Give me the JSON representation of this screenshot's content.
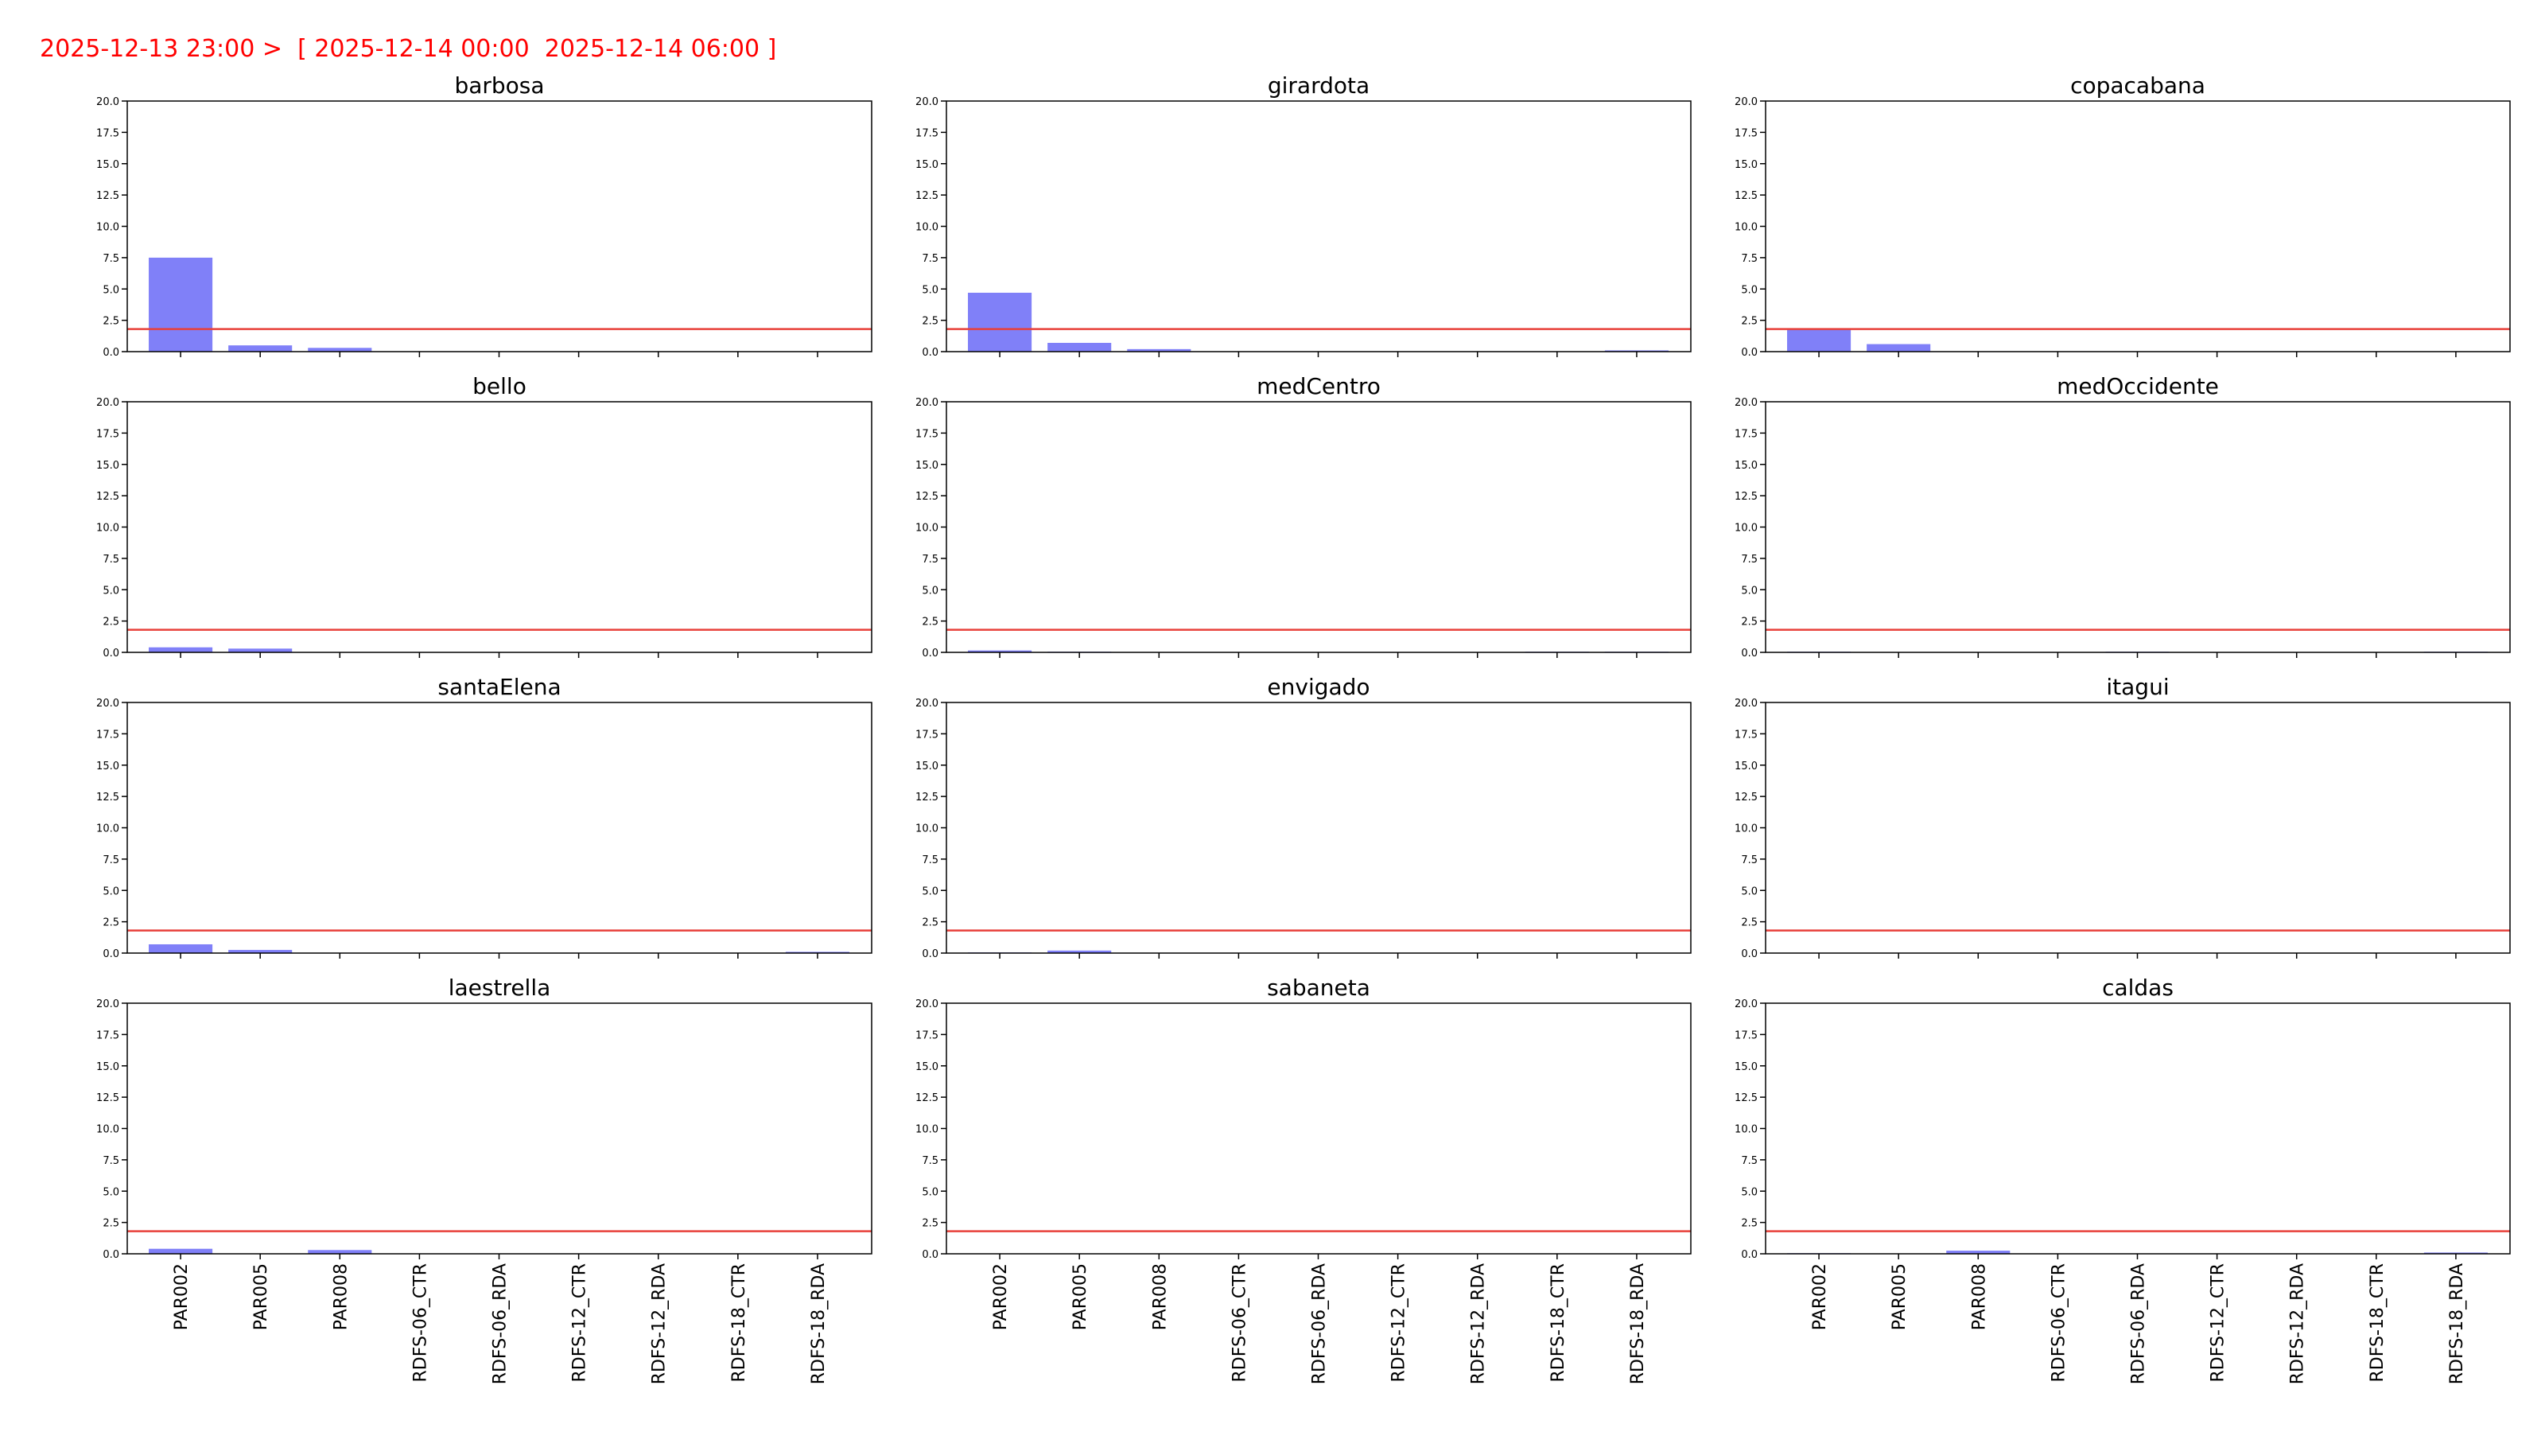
{
  "header": {
    "text": "2025-12-13 23:00 >  [ 2025-12-14 00:00  2025-12-14 06:00 ]"
  },
  "colors": {
    "bar": "#8080f8",
    "threshold": "#e8403a",
    "header": "#ff0000",
    "axis": "#000000"
  },
  "chart_data": [
    {
      "type": "bar",
      "title": "barbosa",
      "categories": [
        "PAR002",
        "PAR005",
        "PAR008",
        "RDFS-06_CTR",
        "RDFS-06_RDA",
        "RDFS-12_CTR",
        "RDFS-12_RDA",
        "RDFS-18_CTR",
        "RDFS-18_RDA"
      ],
      "values": [
        7.5,
        0.5,
        0.3,
        0,
        0,
        0,
        0,
        0,
        0
      ],
      "ylim": [
        0,
        20
      ],
      "yticks": [
        "0.0",
        "2.5",
        "5.0",
        "7.5",
        "10.0",
        "12.5",
        "15.0",
        "17.5",
        "20.0"
      ],
      "threshold": 1.8
    },
    {
      "type": "bar",
      "title": "girardota",
      "categories": [
        "PAR002",
        "PAR005",
        "PAR008",
        "RDFS-06_CTR",
        "RDFS-06_RDA",
        "RDFS-12_CTR",
        "RDFS-12_RDA",
        "RDFS-18_CTR",
        "RDFS-18_RDA"
      ],
      "values": [
        4.7,
        0.7,
        0.2,
        0,
        0,
        0,
        0,
        0,
        0.1
      ],
      "ylim": [
        0,
        20
      ],
      "yticks": [
        "0.0",
        "2.5",
        "5.0",
        "7.5",
        "10.0",
        "12.5",
        "15.0",
        "17.5",
        "20.0"
      ],
      "threshold": 1.8
    },
    {
      "type": "bar",
      "title": "copacabana",
      "categories": [
        "PAR002",
        "PAR005",
        "PAR008",
        "RDFS-06_CTR",
        "RDFS-06_RDA",
        "RDFS-12_CTR",
        "RDFS-12_RDA",
        "RDFS-18_CTR",
        "RDFS-18_RDA"
      ],
      "values": [
        1.8,
        0.6,
        0,
        0,
        0,
        0,
        0,
        0,
        0
      ],
      "ylim": [
        0,
        20
      ],
      "yticks": [
        "0.0",
        "2.5",
        "5.0",
        "7.5",
        "10.0",
        "12.5",
        "15.0",
        "17.5",
        "20.0"
      ],
      "threshold": 1.8
    },
    {
      "type": "bar",
      "title": "bello",
      "categories": [
        "PAR002",
        "PAR005",
        "PAR008",
        "RDFS-06_CTR",
        "RDFS-06_RDA",
        "RDFS-12_CTR",
        "RDFS-12_RDA",
        "RDFS-18_CTR",
        "RDFS-18_RDA"
      ],
      "values": [
        0.4,
        0.3,
        0,
        0,
        0,
        0,
        0,
        0,
        0
      ],
      "ylim": [
        0,
        20
      ],
      "yticks": [
        "0.0",
        "2.5",
        "5.0",
        "7.5",
        "10.0",
        "12.5",
        "15.0",
        "17.5",
        "20.0"
      ],
      "threshold": 1.8
    },
    {
      "type": "bar",
      "title": "medCentro",
      "categories": [
        "PAR002",
        "PAR005",
        "PAR008",
        "RDFS-06_CTR",
        "RDFS-06_RDA",
        "RDFS-12_CTR",
        "RDFS-12_RDA",
        "RDFS-18_CTR",
        "RDFS-18_RDA"
      ],
      "values": [
        0.15,
        0.05,
        0,
        0,
        0,
        0,
        0,
        0.05,
        0.05
      ],
      "ylim": [
        0,
        20
      ],
      "yticks": [
        "0.0",
        "2.5",
        "5.0",
        "7.5",
        "10.0",
        "12.5",
        "15.0",
        "17.5",
        "20.0"
      ],
      "threshold": 1.8
    },
    {
      "type": "bar",
      "title": "medOccidente",
      "categories": [
        "PAR002",
        "PAR005",
        "PAR008",
        "RDFS-06_CTR",
        "RDFS-06_RDA",
        "RDFS-12_CTR",
        "RDFS-12_RDA",
        "RDFS-18_CTR",
        "RDFS-18_RDA"
      ],
      "values": [
        0.05,
        0,
        0,
        0,
        0.05,
        0,
        0,
        0,
        0.05
      ],
      "ylim": [
        0,
        20
      ],
      "yticks": [
        "0.0",
        "2.5",
        "5.0",
        "7.5",
        "10.0",
        "12.5",
        "15.0",
        "17.5",
        "20.0"
      ],
      "threshold": 1.8
    },
    {
      "type": "bar",
      "title": "santaElena",
      "categories": [
        "PAR002",
        "PAR005",
        "PAR008",
        "RDFS-06_CTR",
        "RDFS-06_RDA",
        "RDFS-12_CTR",
        "RDFS-12_RDA",
        "RDFS-18_CTR",
        "RDFS-18_RDA"
      ],
      "values": [
        0.7,
        0.25,
        0,
        0,
        0,
        0,
        0,
        0,
        0.1
      ],
      "ylim": [
        0,
        20
      ],
      "yticks": [
        "0.0",
        "2.5",
        "5.0",
        "7.5",
        "10.0",
        "12.5",
        "15.0",
        "17.5",
        "20.0"
      ],
      "threshold": 1.8
    },
    {
      "type": "bar",
      "title": "envigado",
      "categories": [
        "PAR002",
        "PAR005",
        "PAR008",
        "RDFS-06_CTR",
        "RDFS-06_RDA",
        "RDFS-12_CTR",
        "RDFS-12_RDA",
        "RDFS-18_CTR",
        "RDFS-18_RDA"
      ],
      "values": [
        0.05,
        0.2,
        0,
        0,
        0,
        0,
        0,
        0,
        0
      ],
      "ylim": [
        0,
        20
      ],
      "yticks": [
        "0.0",
        "2.5",
        "5.0",
        "7.5",
        "10.0",
        "12.5",
        "15.0",
        "17.5",
        "20.0"
      ],
      "threshold": 1.8
    },
    {
      "type": "bar",
      "title": "itagui",
      "categories": [
        "PAR002",
        "PAR005",
        "PAR008",
        "RDFS-06_CTR",
        "RDFS-06_RDA",
        "RDFS-12_CTR",
        "RDFS-12_RDA",
        "RDFS-18_CTR",
        "RDFS-18_RDA"
      ],
      "values": [
        0,
        0,
        0,
        0,
        0,
        0,
        0,
        0,
        0
      ],
      "ylim": [
        0,
        20
      ],
      "yticks": [
        "0.0",
        "2.5",
        "5.0",
        "7.5",
        "10.0",
        "12.5",
        "15.0",
        "17.5",
        "20.0"
      ],
      "threshold": 1.8
    },
    {
      "type": "bar",
      "title": "laestrella",
      "categories": [
        "PAR002",
        "PAR005",
        "PAR008",
        "RDFS-06_CTR",
        "RDFS-06_RDA",
        "RDFS-12_CTR",
        "RDFS-12_RDA",
        "RDFS-18_CTR",
        "RDFS-18_RDA"
      ],
      "values": [
        0.4,
        0,
        0.3,
        0,
        0,
        0,
        0,
        0,
        0
      ],
      "ylim": [
        0,
        20
      ],
      "yticks": [
        "0.0",
        "2.5",
        "5.0",
        "7.5",
        "10.0",
        "12.5",
        "15.0",
        "17.5",
        "20.0"
      ],
      "threshold": 1.8
    },
    {
      "type": "bar",
      "title": "sabaneta",
      "categories": [
        "PAR002",
        "PAR005",
        "PAR008",
        "RDFS-06_CTR",
        "RDFS-06_RDA",
        "RDFS-12_CTR",
        "RDFS-12_RDA",
        "RDFS-18_CTR",
        "RDFS-18_RDA"
      ],
      "values": [
        0,
        0,
        0,
        0,
        0,
        0,
        0,
        0,
        0
      ],
      "ylim": [
        0,
        20
      ],
      "yticks": [
        "0.0",
        "2.5",
        "5.0",
        "7.5",
        "10.0",
        "12.5",
        "15.0",
        "17.5",
        "20.0"
      ],
      "threshold": 1.8
    },
    {
      "type": "bar",
      "title": "caldas",
      "categories": [
        "PAR002",
        "PAR005",
        "PAR008",
        "RDFS-06_CTR",
        "RDFS-06_RDA",
        "RDFS-12_CTR",
        "RDFS-12_RDA",
        "RDFS-18_CTR",
        "RDFS-18_RDA"
      ],
      "values": [
        0.05,
        0,
        0.25,
        0,
        0,
        0,
        0,
        0,
        0.1
      ],
      "ylim": [
        0,
        20
      ],
      "yticks": [
        "0.0",
        "2.5",
        "5.0",
        "7.5",
        "10.0",
        "12.5",
        "15.0",
        "17.5",
        "20.0"
      ],
      "threshold": 1.8
    }
  ]
}
